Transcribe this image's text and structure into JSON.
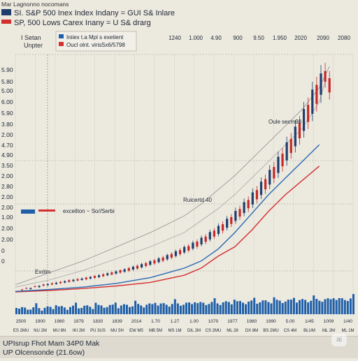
{
  "header": {
    "top_text": "Mar Lagnonno nocomans",
    "legend1": "SI. S&P 500 Inex Index Indany = GUI S& Inlare",
    "legend2": "SP, 500 Lows Carex Inany = U S& drarg",
    "legend1_color": "#1f3e6e",
    "legend2_color": "#d32f2f"
  },
  "left_labels": {
    "line1": "I Setan",
    "line2": "Unpter"
  },
  "legend_box": {
    "item1": "Iniiex t.a Mpl s exetient",
    "item2": "Oucl olnt. viris",
    "item2b": "Sx6/5798",
    "item1_color": "#1f5fa8",
    "item2_color": "#d32f2f"
  },
  "mid_legend": {
    "label": "exceilton ~ So//Serbi"
  },
  "annotations": {
    "a1": "Oule secm98",
    "a2": "Ruicertd 40",
    "a3": "Exrilm"
  },
  "top_axis": [
    "1240",
    "1.000",
    "4.90",
    "900",
    "9.50",
    "1.950",
    "2020",
    "2090",
    "2080"
  ],
  "footer": {
    "line1": "UPIsrup Fhot Mam 34P0 Mak",
    "line2": "UP Olcensonde (21.6ow)"
  },
  "watermark": "ai",
  "chart_data": {
    "type": "line",
    "title": "SI. S&P 500 Inex Index Indany = GUI S& Inlare",
    "ylabels": [
      "5.90",
      "5.80",
      "5.00",
      "6.00",
      "5.90",
      "3.80",
      "2.00",
      "4.70",
      "4.90",
      "3.50",
      "2.00",
      "2.80",
      "2.00",
      "2.00",
      "1.00",
      "2.00",
      "2.00",
      "0",
      "0"
    ],
    "xlabels": [
      "2500",
      "1900",
      "1980",
      "1979",
      "1830",
      "1839",
      "2014",
      "1.70",
      "1.27",
      "1.00",
      "1070",
      "1977",
      "1980",
      "1990",
      "5.00",
      "1/45",
      "1009",
      "1/40"
    ],
    "xlabels2": [
      "ES 2MU",
      "NU 2M",
      "MU 8N",
      "IKI 2M",
      "PU 3US",
      "MU 5H",
      "EW M5",
      "MB 5M",
      "MS 1M",
      "DIL 2M",
      "CS 2MU",
      "ML 28",
      "DX 8M",
      "BS 2MU",
      "CS 4M",
      "BLUM",
      "ML 2M",
      "ML 1M"
    ],
    "ylim": [
      0,
      100
    ],
    "series": [
      {
        "name": "SP, 500 Lows Carex Inany = U S& drarg",
        "color": "#d32f2f",
        "x": [
          0,
          10,
          20,
          30,
          40,
          50,
          55,
          60,
          65,
          70,
          75,
          80,
          85,
          90
        ],
        "y": [
          0,
          0.6,
          1.4,
          2.5,
          4,
          7,
          10,
          15,
          19,
          26,
          34,
          41,
          47,
          53
        ]
      },
      {
        "name": "SI. S&P 500 Inex Index Indany = GUI S& Inlare",
        "color": "#2a6bb3",
        "x": [
          0,
          10,
          20,
          30,
          40,
          50,
          55,
          60,
          65,
          70,
          75,
          80,
          85,
          90
        ],
        "y": [
          0.2,
          1,
          2,
          3.6,
          6,
          10,
          13,
          18,
          25,
          33,
          41,
          48,
          55,
          62
        ]
      },
      {
        "name": "",
        "color": "#8f8f8f",
        "x": [
          0,
          10,
          20,
          30,
          40,
          50,
          55,
          60,
          65,
          70,
          75,
          80,
          85,
          90,
          93
        ],
        "y": [
          3,
          8,
          13,
          19,
          25,
          32,
          37,
          43,
          49,
          56,
          63,
          70,
          77,
          86,
          95
        ]
      },
      {
        "name": "",
        "color": "#a8a8a8",
        "x": [
          0,
          10,
          20,
          30,
          40,
          50,
          55,
          60,
          65,
          70,
          75,
          80,
          85,
          90,
          92
        ],
        "y": [
          2,
          5,
          9,
          14,
          19,
          25,
          30,
          35,
          41,
          48,
          55,
          62,
          69,
          80,
          90
        ]
      }
    ],
    "candles": [
      [
        1.0,
        0.8,
        1.3,
        0.6
      ],
      [
        1.6,
        1.4,
        2.0,
        1.2
      ],
      [
        1.2,
        1.6,
        1.9,
        0.9
      ],
      [
        2.4,
        2.1,
        2.7,
        1.8
      ],
      [
        2.0,
        2.5,
        2.9,
        1.7
      ],
      [
        3.1,
        2.6,
        3.5,
        2.3
      ],
      [
        2.8,
        3.3,
        3.7,
        2.5
      ],
      [
        3.6,
        3.1,
        4.0,
        2.8
      ],
      [
        3.3,
        3.8,
        4.3,
        3.0
      ],
      [
        4.2,
        3.7,
        4.6,
        3.3
      ],
      [
        3.9,
        4.5,
        4.9,
        3.6
      ],
      [
        4.9,
        4.2,
        5.3,
        3.9
      ],
      [
        4.5,
        5.1,
        5.5,
        4.1
      ],
      [
        5.4,
        4.8,
        5.8,
        4.4
      ],
      [
        5.0,
        5.6,
        6.1,
        4.7
      ],
      [
        6.0,
        5.3,
        6.4,
        4.9
      ],
      [
        5.6,
        6.3,
        6.7,
        5.2
      ],
      [
        6.7,
        5.9,
        7.1,
        5.5
      ],
      [
        6.2,
        7.0,
        7.5,
        5.8
      ],
      [
        7.4,
        6.6,
        7.9,
        6.2
      ],
      [
        7.0,
        7.8,
        8.3,
        6.6
      ],
      [
        8.2,
        7.3,
        8.6,
        6.9
      ],
      [
        7.7,
        8.6,
        9.1,
        7.2
      ],
      [
        9.1,
        8.1,
        9.5,
        7.7
      ],
      [
        8.5,
        9.5,
        10.0,
        8.0
      ],
      [
        10.0,
        8.9,
        10.5,
        8.4
      ],
      [
        9.4,
        10.6,
        11.1,
        8.9
      ],
      [
        11.0,
        9.8,
        11.6,
        9.3
      ],
      [
        10.3,
        11.7,
        12.2,
        9.8
      ],
      [
        12.1,
        10.9,
        12.7,
        10.3
      ],
      [
        11.4,
        12.9,
        13.4,
        10.9
      ],
      [
        13.3,
        12.0,
        13.9,
        11.4
      ],
      [
        12.5,
        14.1,
        14.7,
        12.0
      ],
      [
        14.5,
        13.1,
        15.2,
        12.5
      ],
      [
        13.7,
        15.5,
        16.1,
        13.1
      ],
      [
        16.0,
        14.4,
        16.7,
        13.7
      ],
      [
        15.1,
        17.1,
        17.8,
        14.5
      ],
      [
        17.6,
        15.9,
        18.4,
        15.1
      ],
      [
        16.6,
        18.9,
        19.6,
        16.0
      ],
      [
        19.3,
        17.4,
        20.1,
        16.6
      ],
      [
        18.2,
        20.7,
        21.5,
        17.5
      ],
      [
        21.2,
        19.1,
        22.1,
        18.2
      ],
      [
        20.0,
        22.8,
        23.7,
        19.2
      ],
      [
        23.3,
        21.1,
        24.3,
        20.1
      ],
      [
        22.1,
        25.2,
        26.2,
        21.2
      ],
      [
        25.8,
        23.3,
        26.9,
        22.3
      ],
      [
        24.4,
        27.8,
        28.9,
        23.4
      ],
      [
        28.5,
        25.8,
        29.7,
        24.6
      ],
      [
        27.0,
        30.8,
        32.0,
        25.9
      ],
      [
        31.5,
        28.6,
        32.8,
        27.3
      ],
      [
        29.9,
        34.1,
        35.5,
        28.7
      ],
      [
        34.9,
        31.7,
        36.3,
        30.3
      ],
      [
        33.2,
        37.8,
        39.3,
        31.8
      ],
      [
        38.7,
        35.2,
        40.2,
        33.6
      ],
      [
        36.8,
        41.9,
        43.6,
        35.3
      ],
      [
        42.9,
        39.0,
        44.6,
        37.3
      ],
      [
        40.8,
        46.4,
        48.2,
        39.1
      ],
      [
        47.5,
        43.2,
        49.4,
        41.3
      ],
      [
        45.2,
        51.4,
        53.4,
        43.3
      ],
      [
        52.6,
        47.8,
        54.7,
        45.8
      ],
      [
        50.1,
        56.9,
        59.1,
        48.0
      ],
      [
        58.2,
        52.9,
        60.5,
        50.7
      ],
      [
        55.4,
        63.0,
        65.4,
        53.1
      ],
      [
        64.4,
        58.5,
        66.9,
        56.1
      ],
      [
        61.3,
        69.6,
        72.3,
        58.7
      ],
      [
        71.2,
        64.7,
        74.0,
        62.0
      ],
      [
        67.8,
        77.0,
        80.0,
        65.0
      ],
      [
        78.8,
        71.6,
        81.9,
        68.6
      ],
      [
        75.0,
        85.2,
        88.5,
        71.9
      ],
      [
        87.2,
        79.2,
        90.6,
        75.9
      ],
      [
        83.0,
        92.0,
        95.5,
        79.6
      ],
      [
        93.0,
        88.5,
        96.5,
        86.0
      ],
      [
        90.0,
        84.0,
        93.0,
        81.0
      ]
    ]
  }
}
